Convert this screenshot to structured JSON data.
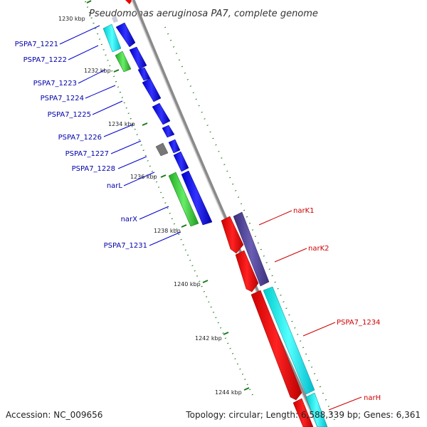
{
  "title": "Pseudomonas aeruginosa PA7, complete genome",
  "accession": "Accession: NC_009656",
  "topology": "Topology: circular; Length: 6,588,339 bp; Genes: 6,361",
  "ticks": [
    "1230 kbp",
    "1232 kbp",
    "1234 kbp",
    "1236 kbp",
    "1238 kbp",
    "1240 kbp",
    "1242 kbp",
    "1244 kbp"
  ],
  "genes_left": [
    "PSPA7_1221",
    "PSPA7_1222",
    "PSPA7_1223",
    "PSPA7_1224",
    "PSPA7_1225",
    "PSPA7_1226",
    "PSPA7_1227",
    "PSPA7_1228",
    "narL",
    "narX",
    "PSPA7_1231"
  ],
  "genes_right": [
    "narK1",
    "narK2",
    "PSPA7_1234",
    "narH"
  ],
  "colors": {
    "forward_gene": "#0000ee",
    "reverse_gene": "#ee0000",
    "backbone": "#999999",
    "tick": "#1a7a1a",
    "left_label": "#0000aa",
    "right_label": "#cc0000",
    "cyan_feature": "#00e5ee",
    "green_feature": "#33cc33",
    "purple_feature": "#4b3f8f",
    "gray_feature": "#777777"
  }
}
